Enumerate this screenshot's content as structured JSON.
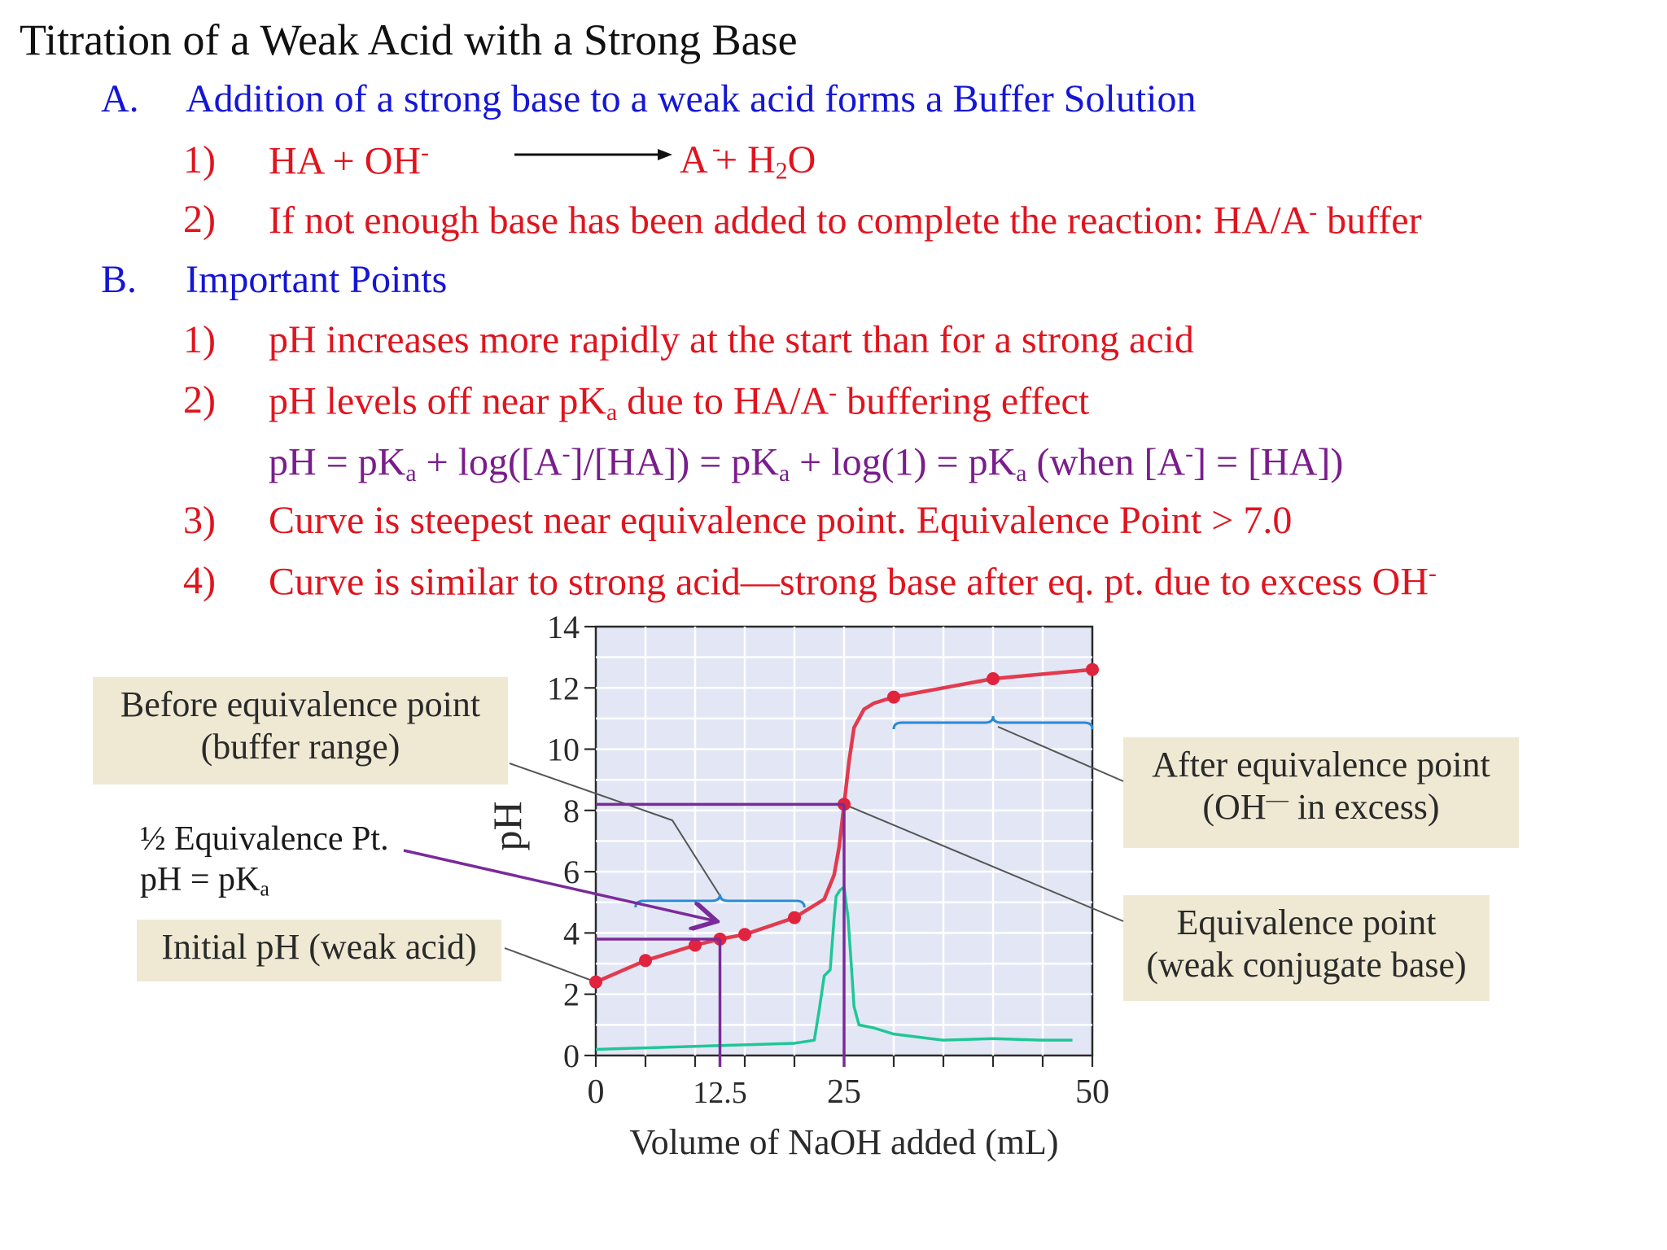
{
  "slide": {
    "title": "Titration of a Weak Acid with a Strong Base",
    "sectionA": {
      "marker": "A.",
      "heading": "Addition of a strong base to a weak acid forms a Buffer Solution",
      "item1_marker": "1)",
      "item1_reactants": "HA  +  OH",
      "item1_products": "A  +  H",
      "item1_water_tail": "O",
      "item2_marker": "2)",
      "item2_text": "If not enough base has been added to complete the reaction: HA/A",
      "item2_tail": " buffer"
    },
    "sectionB": {
      "marker": "B.",
      "heading": "Important Points",
      "p1_marker": "1)",
      "p1_text": "pH increases more rapidly at the start than for a strong acid",
      "p2_marker": "2)",
      "p2_text_a": "pH levels off near pK",
      "p2_text_b": " due to HA/A",
      "p2_text_c": " buffering effect",
      "eq_a": "pH = pK",
      "eq_b": " + log([A",
      "eq_c": "]/[HA])   =  pK",
      "eq_d": "  +  log(1)  =  pK",
      "eq_e": "  (when [A",
      "eq_f": "] = [HA])",
      "p3_marker": "3)",
      "p3_text": "Curve is steepest near equivalence point.  Equivalence Point > 7.0",
      "p4_marker": "4)",
      "p4_text": "Curve is similar to strong acid—strong base after eq. pt. due to excess OH"
    }
  },
  "annotations": {
    "before_eq": [
      "Before equivalence point",
      "(buffer range)"
    ],
    "half_eq": [
      "½ Equivalence Pt.",
      "pH = pK"
    ],
    "initial_ph": "Initial pH (weak acid)",
    "after_eq": [
      "After equivalence point",
      "in excess)"
    ],
    "after_eq_oh": "(OH",
    "eq_point": [
      "Equivalence point",
      "(weak conjugate base)"
    ]
  },
  "chart_data": {
    "type": "line",
    "xlabel": "Volume of NaOH added (mL)",
    "ylabel": "pH",
    "xlim": [
      0,
      50
    ],
    "ylim": [
      0,
      14
    ],
    "x_ticks": [
      "0",
      "12.5",
      "25",
      "50"
    ],
    "y_ticks": [
      "0",
      "2",
      "4",
      "6",
      "8",
      "10",
      "12",
      "14"
    ],
    "grid": true,
    "series": [
      {
        "color": "#e23a4e",
        "x": [
          0,
          5,
          10,
          12.5,
          15,
          20,
          23,
          24,
          24.5,
          25,
          25.5,
          26,
          27,
          28,
          30,
          40,
          50
        ],
        "y": [
          2.4,
          3.1,
          3.6,
          3.8,
          3.95,
          4.5,
          5.1,
          5.9,
          6.8,
          8.2,
          9.6,
          10.7,
          11.3,
          11.5,
          11.7,
          12.3,
          12.6
        ],
        "marker_x": [
          0,
          5,
          10,
          12.5,
          15,
          20,
          25,
          30,
          40,
          50
        ]
      },
      {
        "color": "#1ec797",
        "x": [
          0,
          5,
          10,
          15,
          20,
          22,
          22.5,
          23,
          23.6,
          24,
          24.2,
          24.6,
          25,
          25.4,
          25.8,
          26,
          26.5,
          28,
          30,
          35,
          40,
          45,
          48
        ],
        "y": [
          0.2,
          0.25,
          0.3,
          0.35,
          0.4,
          0.5,
          1.5,
          2.6,
          2.8,
          4.5,
          5.2,
          5.4,
          5.5,
          4.5,
          2.6,
          1.6,
          1.0,
          0.9,
          0.7,
          0.5,
          0.55,
          0.5,
          0.5
        ]
      }
    ],
    "reference_lines": {
      "color": "#7a2a9a",
      "half_eq": {
        "x": 12.5,
        "pH": 3.8
      },
      "eq": {
        "x": 25,
        "pH": 8.2
      }
    },
    "ranges": {
      "color": "#2a8ad6",
      "buffer": [
        4,
        21
      ],
      "excess": [
        30,
        50
      ]
    }
  }
}
